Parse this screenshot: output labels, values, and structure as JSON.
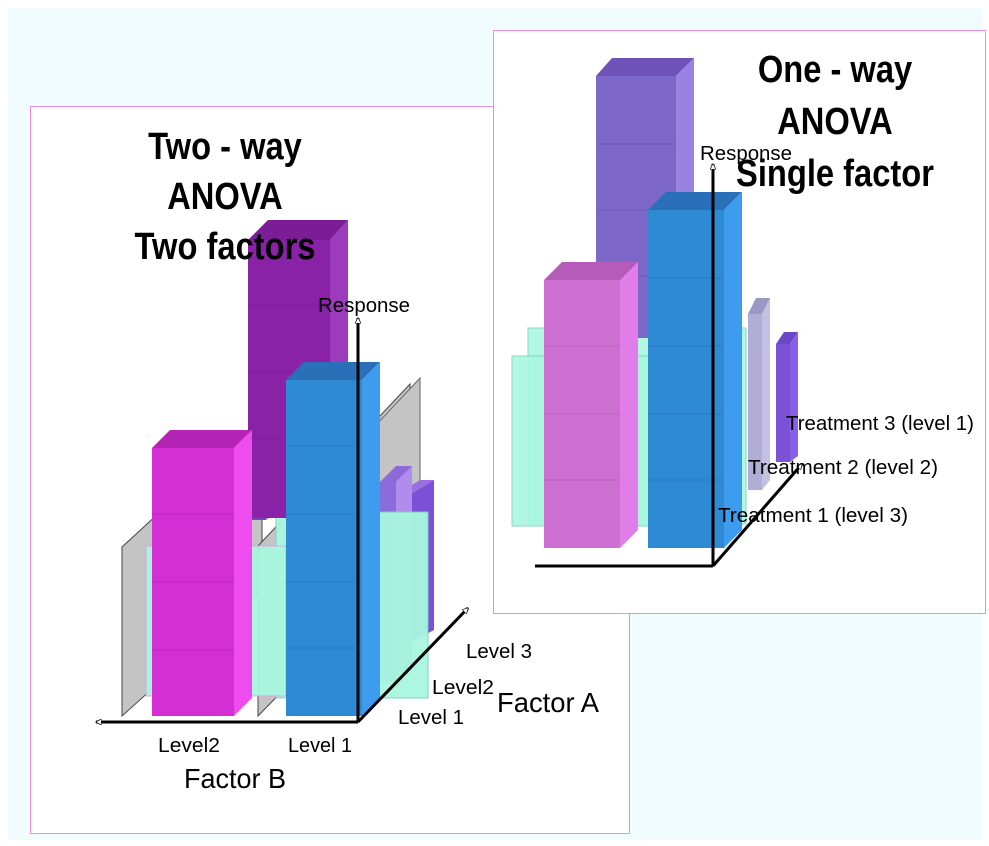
{
  "two_way": {
    "title_line1": "Two - way ANOVA",
    "title_line2": "Two factors",
    "response_label": "Response",
    "factor_a_label": "Factor A",
    "factor_b_label": "Factor B",
    "factor_a_levels": [
      "Level 1",
      "Level2",
      "Level 3"
    ],
    "factor_b_levels": [
      "Level 1",
      "Level2"
    ]
  },
  "one_way": {
    "title_line1": "One - way ANOVA",
    "title_line2": "Single factor",
    "response_label": "Response",
    "treatments": [
      "Treatment 1 (level 3)",
      "Treatment 2 (level 2)",
      "Treatment 3 (level 1)"
    ]
  },
  "colors": {
    "panel_border": "#e98be9",
    "background": "#f0fcfd",
    "magenta": "#d42fd4",
    "purple": "#8a22a8",
    "blue": "#2f8ad4",
    "violet": "#7c52d4",
    "mint": "#a9f7df",
    "gray_panel": "#c4c4c4",
    "pink": "#cc6fd0",
    "lavender": "#7d67c9",
    "lilac_gray": "#b1aed6"
  }
}
